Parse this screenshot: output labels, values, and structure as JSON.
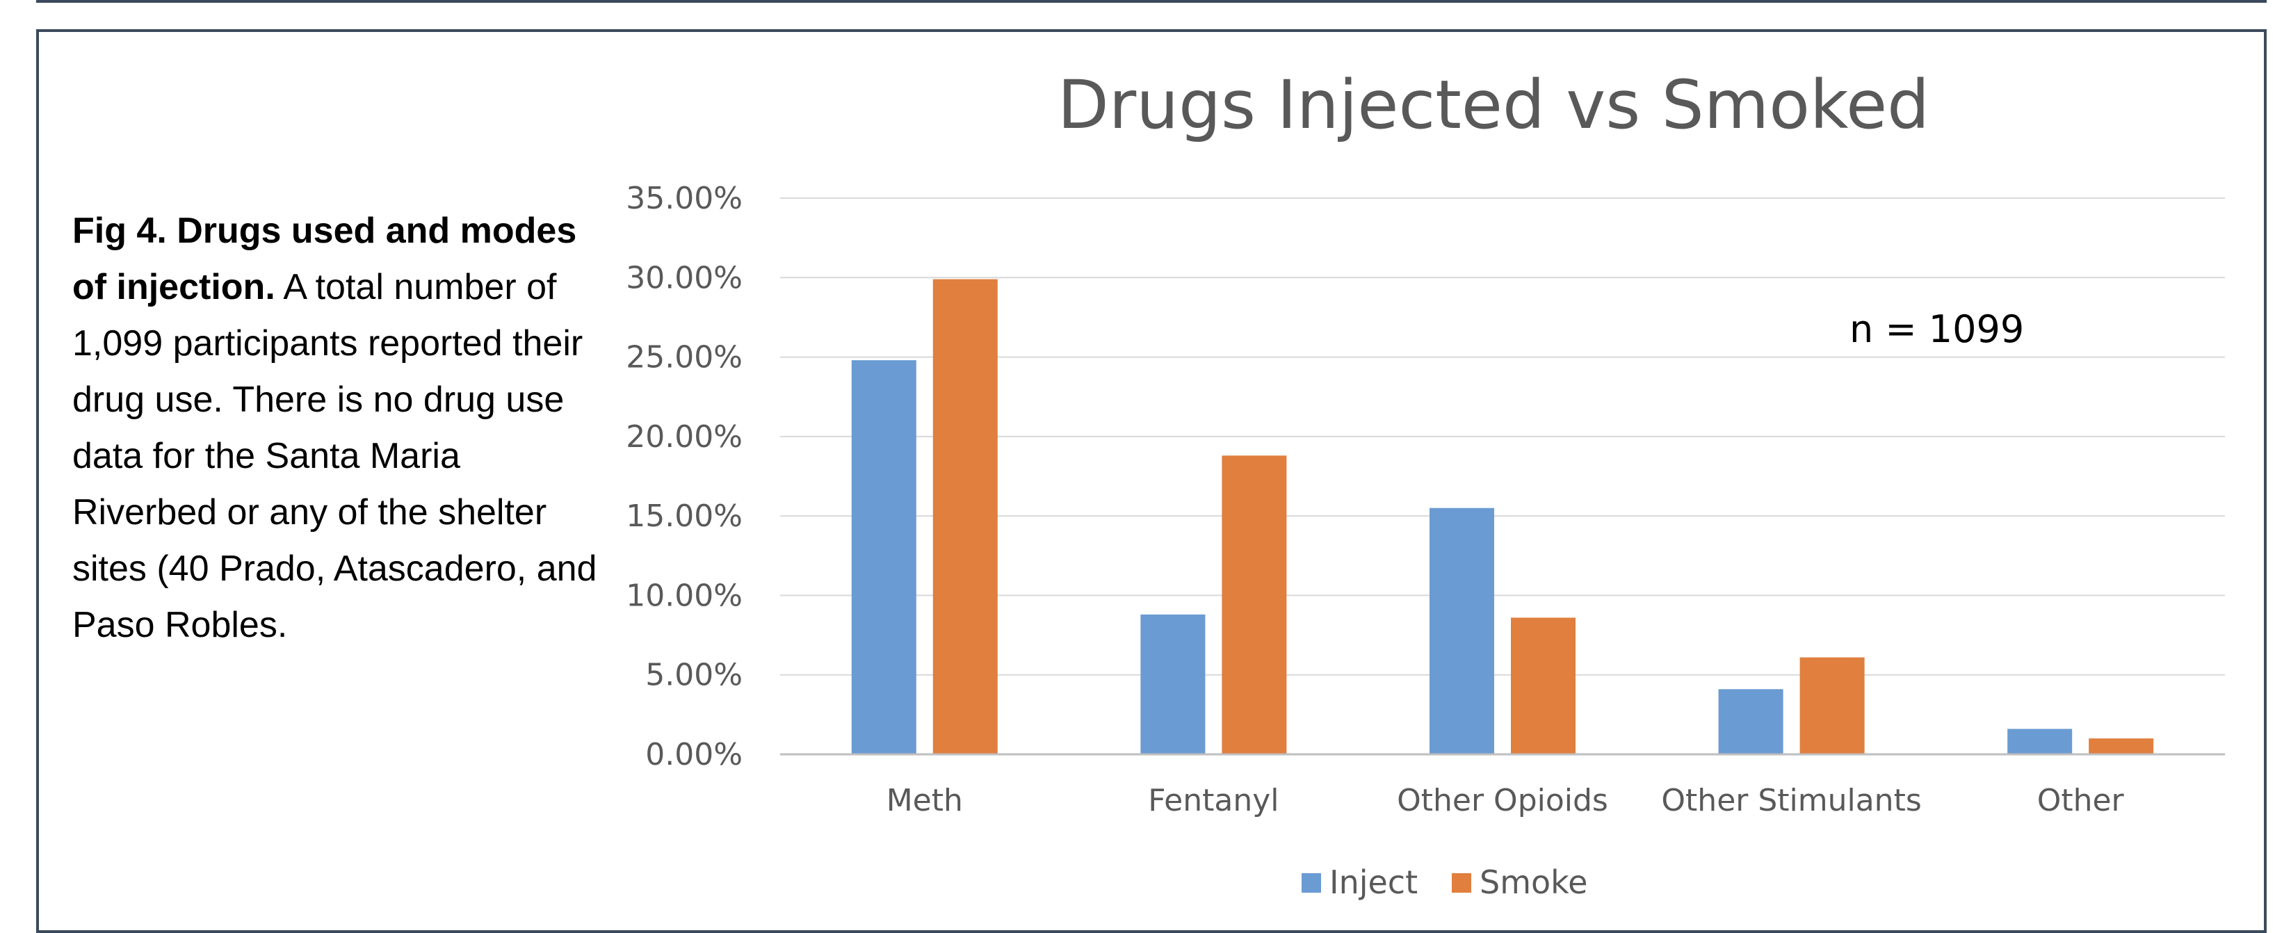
{
  "caption": {
    "bold": "Fig 4. Drugs used and modes of injection.",
    "text": " A total number of 1,099 participants reported their drug use. There is no drug use data for the Santa Maria Riverbed or any of the shelter sites (40 Prado, Atascadero, and Paso Robles."
  },
  "chart_data": {
    "type": "bar",
    "title": "Drugs Injected vs Smoked",
    "xlabel": "",
    "ylabel": "",
    "categories": [
      "Meth",
      "Fentanyl",
      "Other Opioids",
      "Other Stimulants",
      "Other"
    ],
    "series": [
      {
        "name": "Inject",
        "color": "#6a9bd2",
        "values": [
          24.8,
          8.8,
          15.5,
          4.1,
          1.6
        ]
      },
      {
        "name": "Smoke",
        "color": "#e07f3e",
        "values": [
          29.9,
          18.8,
          8.6,
          6.1,
          1.0
        ]
      }
    ],
    "ylim": [
      0,
      35
    ],
    "yticks": [
      "0.00%",
      "5.00%",
      "10.00%",
      "15.00%",
      "20.00%",
      "25.00%",
      "30.00%",
      "35.00%"
    ],
    "annotation": "n = 1099",
    "grid": true,
    "legend": "bottom-center"
  }
}
